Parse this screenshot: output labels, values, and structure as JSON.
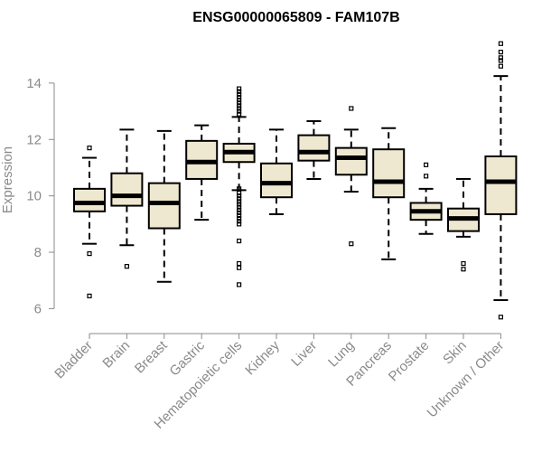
{
  "chart_data": {
    "type": "boxplot",
    "title": "ENSG00000065809 - FAM107B",
    "xlabel": "",
    "ylabel": "Expression",
    "ylim": [
      5.5,
      15.6
    ],
    "yticks": [
      6,
      8,
      10,
      12,
      14
    ],
    "box_fill": "#efe8d0",
    "categories": [
      "Bladder",
      "Brain",
      "Breast",
      "Gastric",
      "Hematopoietic cells",
      "Kidney",
      "Liver",
      "Lung",
      "Pancreas",
      "Prostate",
      "Skin",
      "Unknown / Other"
    ],
    "boxes": [
      {
        "name": "Bladder",
        "whisker_low": 8.3,
        "q1": 9.45,
        "median": 9.75,
        "q3": 10.25,
        "whisker_high": 11.35,
        "outliers": [
          11.7,
          7.95,
          6.45
        ]
      },
      {
        "name": "Brain",
        "whisker_low": 8.25,
        "q1": 9.65,
        "median": 10.0,
        "q3": 10.8,
        "whisker_high": 12.35,
        "outliers": [
          7.5
        ]
      },
      {
        "name": "Breast",
        "whisker_low": 6.95,
        "q1": 8.85,
        "median": 9.75,
        "q3": 10.45,
        "whisker_high": 12.3,
        "outliers": []
      },
      {
        "name": "Gastric",
        "whisker_low": 9.15,
        "q1": 10.6,
        "median": 11.2,
        "q3": 11.95,
        "whisker_high": 12.5,
        "outliers": []
      },
      {
        "name": "Hematopoietic cells",
        "whisker_low": 10.2,
        "q1": 11.2,
        "median": 11.55,
        "q3": 11.85,
        "whisker_high": 12.8,
        "outliers": [
          13.8,
          13.7,
          13.6,
          13.5,
          13.4,
          13.3,
          13.2,
          13.1,
          13.0,
          12.9,
          10.25,
          10.1,
          10.0,
          9.9,
          9.8,
          9.7,
          9.6,
          9.5,
          9.4,
          9.3,
          9.2,
          9.1,
          9.0,
          8.4,
          7.6,
          7.45,
          6.85
        ]
      },
      {
        "name": "Kidney",
        "whisker_low": 9.35,
        "q1": 9.95,
        "median": 10.45,
        "q3": 11.15,
        "whisker_high": 12.35,
        "outliers": []
      },
      {
        "name": "Liver",
        "whisker_low": 10.6,
        "q1": 11.25,
        "median": 11.55,
        "q3": 12.15,
        "whisker_high": 12.65,
        "outliers": []
      },
      {
        "name": "Lung",
        "whisker_low": 10.15,
        "q1": 10.75,
        "median": 11.35,
        "q3": 11.7,
        "whisker_high": 12.35,
        "outliers": [
          13.1,
          8.3
        ]
      },
      {
        "name": "Pancreas",
        "whisker_low": 7.75,
        "q1": 9.95,
        "median": 10.5,
        "q3": 11.65,
        "whisker_high": 12.4,
        "outliers": []
      },
      {
        "name": "Prostate",
        "whisker_low": 8.65,
        "q1": 9.15,
        "median": 9.45,
        "q3": 9.75,
        "whisker_high": 10.25,
        "outliers": [
          11.1,
          10.7
        ]
      },
      {
        "name": "Skin",
        "whisker_low": 8.55,
        "q1": 8.75,
        "median": 9.2,
        "q3": 9.55,
        "whisker_high": 10.6,
        "outliers": [
          7.6,
          7.4
        ]
      },
      {
        "name": "Unknown / Other",
        "whisker_low": 6.3,
        "q1": 9.35,
        "median": 10.5,
        "q3": 11.4,
        "whisker_high": 14.25,
        "outliers": [
          15.4,
          15.1,
          14.9,
          14.8,
          14.6,
          5.7
        ]
      }
    ]
  }
}
